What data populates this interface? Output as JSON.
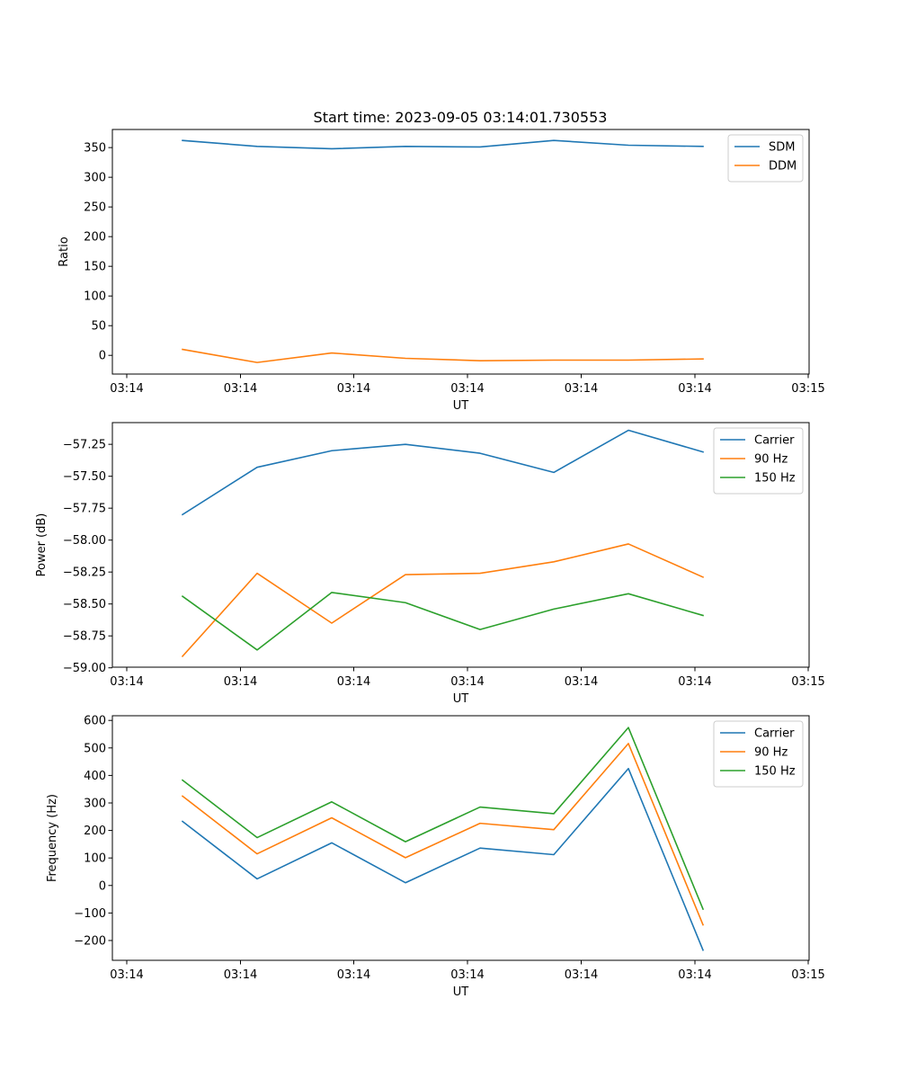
{
  "figure_title": "Start time: 2023-09-05 03:14:01.730553",
  "colors": {
    "blue": "#1f77b4",
    "orange": "#ff7f0e",
    "green": "#2ca02c"
  },
  "chart_data": [
    {
      "type": "line",
      "title": "Start time: 2023-09-05 03:14:01.730553",
      "xlabel": "UT",
      "ylabel": "Ratio",
      "x_tick_labels": [
        "03:14",
        "03:14",
        "03:14",
        "03:14",
        "03:14",
        "03:14",
        "03:15"
      ],
      "y_ticks": [
        0,
        50,
        100,
        150,
        200,
        250,
        300,
        350
      ],
      "y_tick_labels": [
        "0",
        "50",
        "100",
        "150",
        "200",
        "250",
        "300",
        "350"
      ],
      "ylim": [
        -31.5,
        380.5
      ],
      "legend_position": "top-right",
      "series": [
        {
          "name": "SDM",
          "color": "#1f77b4",
          "values": [
            362,
            352,
            348,
            352,
            351,
            362,
            354,
            352
          ]
        },
        {
          "name": "DDM",
          "color": "#ff7f0e",
          "values": [
            10,
            -12,
            4,
            -5,
            -9,
            -8,
            -8,
            -6
          ]
        }
      ]
    },
    {
      "type": "line",
      "title": "",
      "xlabel": "UT",
      "ylabel": "Power (dB)",
      "x_tick_labels": [
        "03:14",
        "03:14",
        "03:14",
        "03:14",
        "03:14",
        "03:14",
        "03:15"
      ],
      "y_ticks": [
        -59.0,
        -58.75,
        -58.5,
        -58.25,
        -58.0,
        -57.75,
        -57.5,
        -57.25
      ],
      "y_tick_labels": [
        "−59.00",
        "−58.75",
        "−58.50",
        "−58.25",
        "−58.00",
        "−57.75",
        "−57.50",
        "−57.25"
      ],
      "ylim": [
        -58.995,
        -57.08
      ],
      "legend_position": "top-right",
      "series": [
        {
          "name": "Carrier",
          "color": "#1f77b4",
          "values": [
            -57.8,
            -57.43,
            -57.3,
            -57.25,
            -57.32,
            -57.47,
            -57.14,
            -57.31
          ]
        },
        {
          "name": "90 Hz",
          "color": "#ff7f0e",
          "values": [
            -58.91,
            -58.26,
            -58.65,
            -58.27,
            -58.26,
            -58.17,
            -58.03,
            -58.29
          ]
        },
        {
          "name": "150 Hz",
          "color": "#2ca02c",
          "values": [
            -58.44,
            -58.86,
            -58.41,
            -58.49,
            -58.7,
            -58.54,
            -58.42,
            -58.59
          ]
        }
      ]
    },
    {
      "type": "line",
      "title": "",
      "xlabel": "UT",
      "ylabel": "Frequency (Hz)",
      "x_tick_labels": [
        "03:14",
        "03:14",
        "03:14",
        "03:14",
        "03:14",
        "03:14",
        "03:15"
      ],
      "y_ticks": [
        -200,
        -100,
        0,
        100,
        200,
        300,
        400,
        500,
        600
      ],
      "y_tick_labels": [
        "−200",
        "−100",
        "0",
        "100",
        "200",
        "300",
        "400",
        "500",
        "600"
      ],
      "ylim": [
        -272,
        617
      ],
      "legend_position": "top-right",
      "series": [
        {
          "name": "Carrier",
          "color": "#1f77b4",
          "values": [
            233,
            24,
            155,
            10,
            136,
            112,
            425,
            -235
          ]
        },
        {
          "name": "90 Hz",
          "color": "#ff7f0e",
          "values": [
            325,
            115,
            246,
            101,
            226,
            203,
            516,
            -143
          ]
        },
        {
          "name": "150 Hz",
          "color": "#2ca02c",
          "values": [
            383,
            174,
            304,
            159,
            285,
            261,
            574,
            -86
          ]
        }
      ]
    }
  ]
}
